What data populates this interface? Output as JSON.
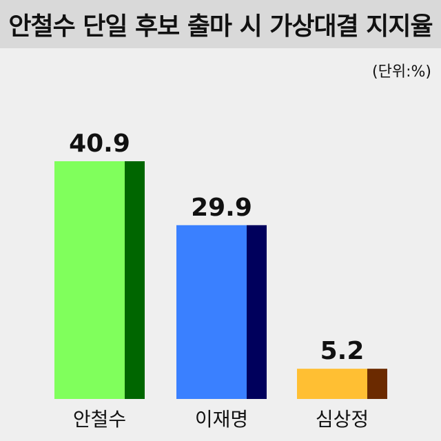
{
  "chart_data": {
    "type": "bar",
    "title": "안철수 단일 후보 출마 시 가상대결 지지율",
    "unit_note": "(단위:%)",
    "categories": [
      "안철수",
      "이재명",
      "심상정"
    ],
    "values": [
      40.9,
      29.9,
      5.2
    ],
    "value_labels": [
      "40.9",
      "29.9",
      "5.2"
    ],
    "colors": {
      "front": [
        "#80ff5c",
        "#3a80ff",
        "#ffbf33"
      ],
      "side": [
        "#006600",
        "#00005c",
        "#6b2a00"
      ]
    },
    "ylim": [
      0,
      40.9
    ],
    "grid": false,
    "legend": "none"
  }
}
